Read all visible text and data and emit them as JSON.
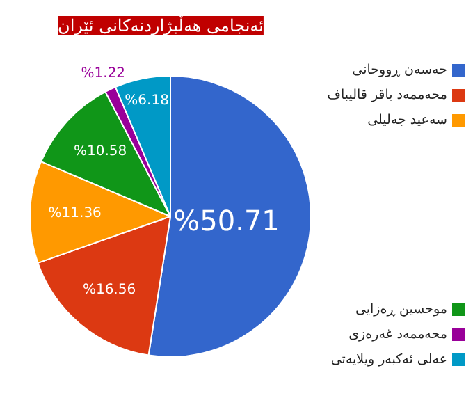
{
  "chart_data": {
    "type": "pie",
    "title": "ئەنجامی هەڵبژاردنەکانی ئێران",
    "categories": [
      "حەسەن ڕووحانی",
      "محەممەد باقر قالیباف",
      "سەعید جەلیلی",
      "موحسین ڕەزایی",
      "محەممەد غەرەزی",
      "عەلی ئەکبەر ویلایەتی"
    ],
    "values": [
      50.71,
      16.56,
      11.36,
      10.58,
      1.22,
      6.18
    ],
    "colors": [
      "#3366cc",
      "#dc3912",
      "#ff9900",
      "#109618",
      "#990099",
      "#0099c6"
    ],
    "value_labels": [
      "%50.71",
      "%16.56",
      "%11.36",
      "%10.58",
      "%1.22",
      "%6.18"
    ],
    "legend": "right"
  }
}
